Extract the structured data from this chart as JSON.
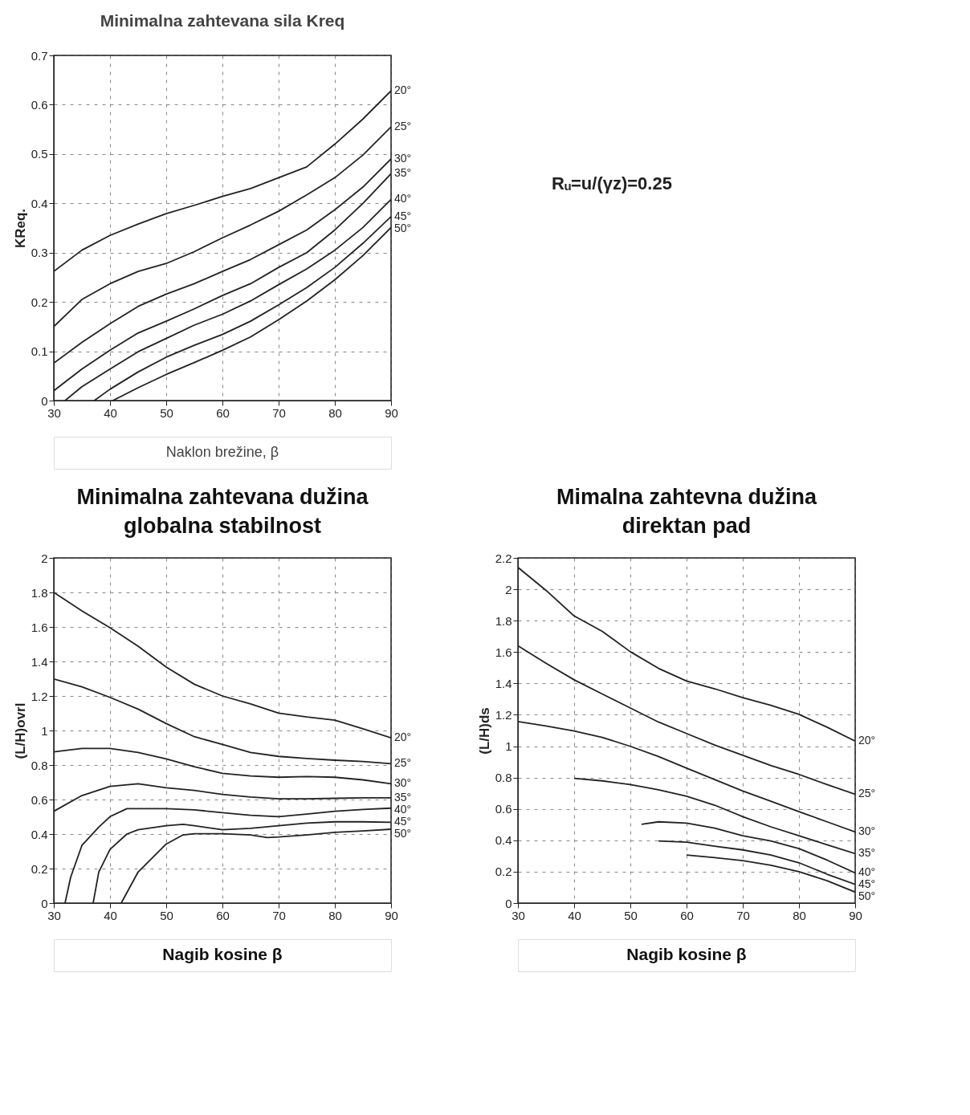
{
  "chart_data": [
    {
      "type": "line",
      "title": "Minimalna zahtevana sila Kreq",
      "xlabel": "Naklon brežine, β",
      "ylabel": "KReq.",
      "xlim": [
        30,
        90
      ],
      "ylim": [
        0,
        0.7
      ],
      "xticks": [
        30,
        40,
        50,
        60,
        70,
        80,
        90
      ],
      "yticks": [
        0,
        0.1,
        0.2,
        0.3,
        0.4,
        0.5,
        0.6,
        0.7
      ],
      "grid": true,
      "annotations": [
        "Rᵤ=u/(γz)=0.25"
      ],
      "series": [
        {
          "name": "20°",
          "color": "#222222",
          "x": [
            30,
            35,
            40,
            45,
            50,
            55,
            60,
            65,
            70,
            75,
            80,
            85,
            90
          ],
          "values": [
            0.262,
            0.305,
            0.335,
            0.358,
            0.379,
            0.396,
            0.414,
            0.43,
            0.452,
            0.474,
            0.52,
            0.571,
            0.628
          ]
        },
        {
          "name": "25°",
          "color": "#222222",
          "x": [
            30,
            35,
            40,
            45,
            50,
            55,
            60,
            65,
            70,
            75,
            80,
            85,
            90
          ],
          "values": [
            0.15,
            0.205,
            0.237,
            0.262,
            0.278,
            0.302,
            0.33,
            0.356,
            0.384,
            0.417,
            0.452,
            0.498,
            0.555
          ]
        },
        {
          "name": "30°",
          "color": "#222222",
          "x": [
            30,
            35,
            40,
            45,
            50,
            55,
            60,
            65,
            70,
            75,
            80,
            85,
            90
          ],
          "values": [
            0.076,
            0.118,
            0.156,
            0.191,
            0.216,
            0.237,
            0.262,
            0.286,
            0.316,
            0.346,
            0.387,
            0.433,
            0.49
          ]
        },
        {
          "name": "35°",
          "color": "#222222",
          "x": [
            30,
            35,
            40,
            45,
            50,
            55,
            60,
            65,
            70,
            75,
            80,
            85,
            90
          ],
          "values": [
            0.02,
            0.064,
            0.102,
            0.137,
            0.161,
            0.186,
            0.213,
            0.237,
            0.27,
            0.3,
            0.346,
            0.4,
            0.46
          ]
        },
        {
          "name": "40°",
          "color": "#222222",
          "x": [
            32,
            35,
            40,
            45,
            50,
            55,
            60,
            65,
            70,
            75,
            80,
            85,
            90
          ],
          "values": [
            0,
            0.028,
            0.064,
            0.099,
            0.126,
            0.153,
            0.175,
            0.202,
            0.235,
            0.267,
            0.305,
            0.351,
            0.408
          ]
        },
        {
          "name": "45°",
          "color": "#222222",
          "x": [
            37.2,
            40,
            45,
            50,
            55,
            60,
            65,
            70,
            75,
            80,
            85,
            90
          ],
          "values": [
            0,
            0.023,
            0.058,
            0.088,
            0.112,
            0.134,
            0.161,
            0.194,
            0.229,
            0.27,
            0.319,
            0.373
          ]
        },
        {
          "name": "50°",
          "color": "#222222",
          "x": [
            40.5,
            45,
            50,
            55,
            60,
            65,
            70,
            75,
            80,
            85,
            90
          ],
          "values": [
            0,
            0.026,
            0.053,
            0.077,
            0.102,
            0.129,
            0.164,
            0.202,
            0.245,
            0.294,
            0.351
          ]
        }
      ]
    },
    {
      "type": "line",
      "title": "Minimalna zahtevana dužina\nglobalna stabilnost",
      "xlabel": "Nagib kosine β",
      "ylabel": "(L/H)ovrl",
      "xlim": [
        30,
        90
      ],
      "ylim": [
        0,
        2
      ],
      "xticks": [
        30,
        40,
        50,
        60,
        70,
        80,
        90
      ],
      "yticks": [
        0,
        0.2,
        0.4,
        0.6,
        0.8,
        1,
        1.2,
        1.4,
        1.6,
        1.8,
        2
      ],
      "grid": true,
      "series": [
        {
          "name": "20°",
          "color": "#222222",
          "x": [
            30,
            35,
            40,
            45,
            50,
            55,
            60,
            65,
            70,
            75,
            80,
            85,
            90
          ],
          "values": [
            1.8,
            1.693,
            1.595,
            1.488,
            1.367,
            1.268,
            1.2,
            1.154,
            1.101,
            1.078,
            1.06,
            1.01,
            0.957
          ]
        },
        {
          "name": "25°",
          "color": "#222222",
          "x": [
            30,
            35,
            40,
            45,
            50,
            55,
            60,
            65,
            70,
            75,
            80,
            85,
            90
          ],
          "values": [
            1.298,
            1.253,
            1.192,
            1.124,
            1.04,
            0.964,
            0.919,
            0.873,
            0.85,
            0.838,
            0.828,
            0.82,
            0.808
          ]
        },
        {
          "name": "30°",
          "color": "#222222",
          "x": [
            30,
            35,
            40,
            45,
            50,
            55,
            60,
            65,
            70,
            75,
            80,
            85,
            90
          ],
          "values": [
            0.876,
            0.896,
            0.896,
            0.873,
            0.835,
            0.79,
            0.752,
            0.737,
            0.729,
            0.733,
            0.729,
            0.714,
            0.691
          ]
        },
        {
          "name": "35°",
          "color": "#222222",
          "x": [
            30,
            35,
            40,
            45,
            50,
            55,
            60,
            65,
            70,
            75,
            80,
            85,
            90
          ],
          "values": [
            0.532,
            0.623,
            0.676,
            0.691,
            0.668,
            0.653,
            0.63,
            0.615,
            0.604,
            0.604,
            0.607,
            0.61,
            0.61
          ]
        },
        {
          "name": "40°",
          "color": "#222222",
          "x": [
            32,
            33,
            35,
            38,
            40,
            43,
            45,
            50,
            55,
            60,
            65,
            70,
            75,
            80,
            85,
            90
          ],
          "values": [
            0,
            0.15,
            0.334,
            0.44,
            0.501,
            0.547,
            0.547,
            0.547,
            0.54,
            0.524,
            0.509,
            0.501,
            0.516,
            0.532,
            0.542,
            0.55
          ]
        },
        {
          "name": "45°",
          "color": "#222222",
          "x": [
            37,
            38,
            40,
            43,
            45,
            50,
            53,
            55,
            60,
            65,
            70,
            75,
            80,
            85,
            90
          ],
          "values": [
            0,
            0.18,
            0.311,
            0.4,
            0.425,
            0.448,
            0.456,
            0.448,
            0.425,
            0.433,
            0.448,
            0.463,
            0.471,
            0.471,
            0.468
          ]
        },
        {
          "name": "50°",
          "color": "#222222",
          "x": [
            42,
            45,
            50,
            53,
            55,
            60,
            65,
            68,
            70,
            75,
            80,
            85,
            90
          ],
          "values": [
            0,
            0.18,
            0.342,
            0.395,
            0.402,
            0.402,
            0.395,
            0.38,
            0.383,
            0.395,
            0.41,
            0.418,
            0.428
          ]
        }
      ]
    },
    {
      "type": "line",
      "title": "Mimalna zahtevna dužina\ndirektan pad",
      "xlabel": "Nagib kosine β",
      "ylabel": "(L/H)ds",
      "xlim": [
        30,
        90
      ],
      "ylim": [
        0,
        2.2
      ],
      "xticks": [
        30,
        40,
        50,
        60,
        70,
        80,
        90
      ],
      "yticks": [
        0,
        0.2,
        0.4,
        0.6,
        0.8,
        1,
        1.2,
        1.4,
        1.6,
        1.8,
        2,
        2.2
      ],
      "grid": true,
      "series": [
        {
          "name": "20°",
          "color": "#222222",
          "x": [
            30,
            35,
            40,
            45,
            50,
            55,
            60,
            65,
            70,
            75,
            80,
            85,
            90
          ],
          "values": [
            2.14,
            1.993,
            1.83,
            1.732,
            1.602,
            1.496,
            1.415,
            1.366,
            1.309,
            1.26,
            1.203,
            1.121,
            1.032
          ]
        },
        {
          "name": "25°",
          "color": "#222222",
          "x": [
            30,
            35,
            40,
            45,
            50,
            55,
            60,
            65,
            70,
            75,
            80,
            85,
            90
          ],
          "values": [
            1.64,
            1.529,
            1.423,
            1.333,
            1.243,
            1.154,
            1.081,
            1.007,
            0.942,
            0.877,
            0.82,
            0.755,
            0.694
          ]
        },
        {
          "name": "30°",
          "color": "#222222",
          "x": [
            30,
            35,
            40,
            45,
            50,
            55,
            60,
            65,
            70,
            75,
            80,
            85,
            90
          ],
          "values": [
            1.157,
            1.129,
            1.097,
            1.056,
            0.999,
            0.934,
            0.86,
            0.787,
            0.714,
            0.649,
            0.583,
            0.518,
            0.453
          ]
        },
        {
          "name": "35°",
          "color": "#222222",
          "x": [
            40,
            45,
            50,
            55,
            60,
            65,
            70,
            75,
            80,
            85,
            90
          ],
          "values": [
            0.795,
            0.779,
            0.755,
            0.722,
            0.681,
            0.624,
            0.551,
            0.486,
            0.429,
            0.372,
            0.315
          ]
        },
        {
          "name": "40°",
          "color": "#222222",
          "x": [
            52,
            55,
            60,
            65,
            70,
            75,
            80,
            85,
            90
          ],
          "values": [
            0.502,
            0.518,
            0.51,
            0.478,
            0.429,
            0.396,
            0.347,
            0.274,
            0.192
          ]
        },
        {
          "name": "45°",
          "color": "#222222",
          "x": [
            55,
            60,
            65,
            70,
            75,
            80,
            85,
            90
          ],
          "values": [
            0.396,
            0.388,
            0.363,
            0.339,
            0.306,
            0.257,
            0.184,
            0.119
          ]
        },
        {
          "name": "50°",
          "color": "#222222",
          "x": [
            60,
            65,
            70,
            75,
            80,
            85,
            90
          ],
          "values": [
            0.306,
            0.29,
            0.271,
            0.241,
            0.2,
            0.143,
            0.07
          ]
        }
      ]
    }
  ]
}
